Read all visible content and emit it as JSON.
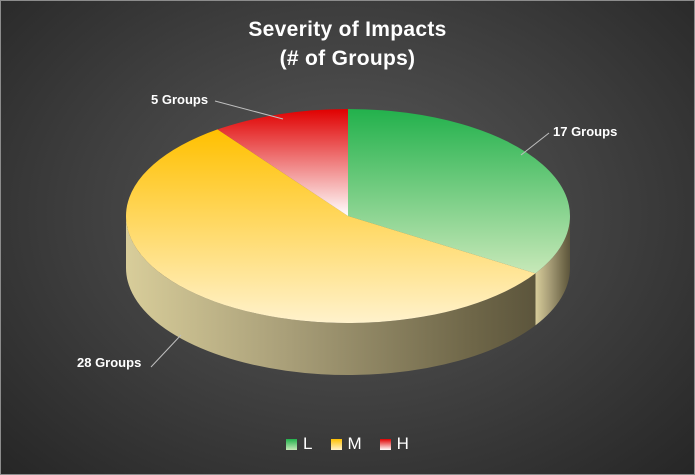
{
  "chart_data": {
    "type": "pie",
    "title_lines": [
      "Severity of Impacts",
      "(# of Groups)"
    ],
    "slices": [
      {
        "name": "L",
        "value": 17,
        "label": "17 Groups",
        "color": "#22b14c",
        "color_light": "#c7e8b8"
      },
      {
        "name": "M",
        "value": 28,
        "label": "28 Groups",
        "color": "#ffc000",
        "color_light": "#fff2cc"
      },
      {
        "name": "H",
        "value": 5,
        "label": "5 Groups",
        "color": "#e00000",
        "color_light": "#ffffff"
      }
    ],
    "legend_position": "bottom",
    "style": "3d"
  }
}
